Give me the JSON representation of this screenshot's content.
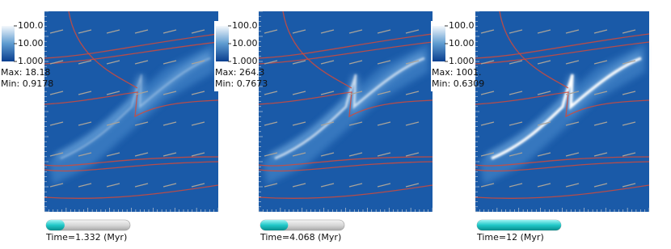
{
  "panels": [
    {
      "colorbar": {
        "ticks": [
          "100.0",
          "10.00",
          "1.000"
        ]
      },
      "max": "Max:  18.18",
      "min": "Min:  0.9178",
      "time": "Time=1.332 (Myr)"
    },
    {
      "colorbar": {
        "ticks": [
          "100.0",
          "10.00",
          "1.000"
        ]
      },
      "max": "Max:  264.3",
      "min": "Min:  0.7673",
      "time": "Time=4.068 (Myr)"
    },
    {
      "colorbar": {
        "ticks": [
          "100.0",
          "10.00",
          "1.000"
        ]
      },
      "max": "Max:  1001.",
      "min": "Min:  0.6309",
      "time": "Time=12 (Myr)"
    }
  ]
}
